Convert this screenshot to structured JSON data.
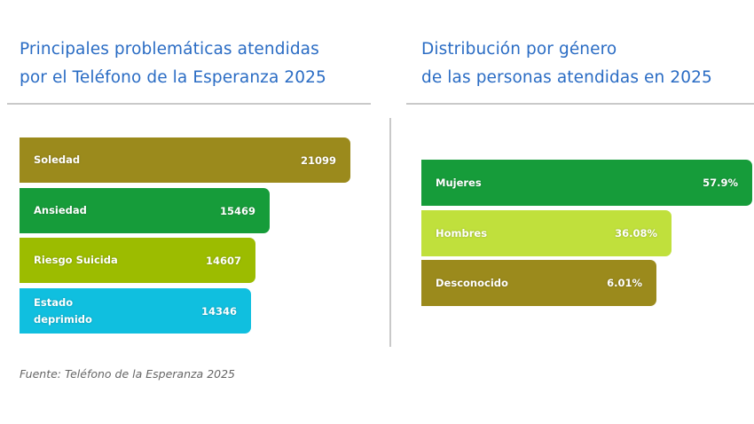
{
  "chart_data": [
    {
      "type": "bar",
      "orientation": "horizontal",
      "title": "Principales problemáticas atendidas por el Teléfono de la Esperanza 2025",
      "title_lines": [
        "Principales problemáticas atendidas",
        "por el Teléfono de la Esperanza 2025"
      ],
      "categories": [
        "Soledad",
        "Ansiedad",
        "Riesgo Suicida",
        "Estado deprimido"
      ],
      "values": [
        21099,
        15469,
        14607,
        14346
      ],
      "value_labels": [
        "21099",
        "15469",
        "14607",
        "14346"
      ],
      "colors": [
        "#9b8a1c",
        "#169c3a",
        "#9cbc00",
        "#10bfdf"
      ],
      "grid": false
    },
    {
      "type": "bar",
      "orientation": "horizontal",
      "title": "Distribución por género de las personas atendidas en 2025",
      "title_lines": [
        "Distribución por género",
        "de las personas atendidas en 2025"
      ],
      "categories": [
        "Mujeres",
        "Hombres",
        "Desconocido"
      ],
      "values": [
        57.9,
        36.08,
        6.01
      ],
      "value_labels": [
        "57.9%",
        "36.08%",
        "6.01%"
      ],
      "colors": [
        "#169c3a",
        "#c0e03c",
        "#9b8a1c"
      ],
      "grid": false
    }
  ],
  "source": "Fuente: Teléfono de la Esperanza 2025"
}
